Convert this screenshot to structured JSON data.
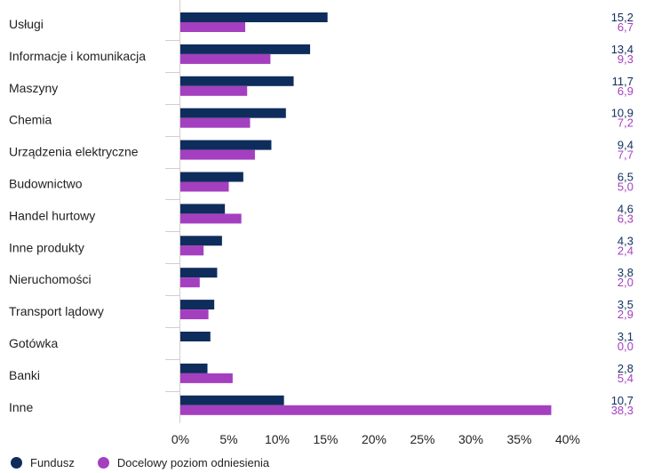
{
  "chart_data": {
    "type": "bar",
    "orientation": "horizontal",
    "categories": [
      "Usługi",
      "Informacje i komunikacja",
      "Maszyny",
      "Chemia",
      "Urządzenia elektryczne",
      "Budownictwo",
      "Handel hurtowy",
      "Inne produkty",
      "Nieruchomości",
      "Transport lądowy",
      "Gotówka",
      "Banki",
      "Inne"
    ],
    "series": [
      {
        "name": "Fundusz",
        "color": "#0f2d5c",
        "values": [
          15.2,
          13.4,
          11.7,
          10.9,
          9.4,
          6.5,
          4.6,
          4.3,
          3.8,
          3.5,
          3.1,
          2.8,
          10.7
        ],
        "labels": [
          "15,2",
          "13,4",
          "11,7",
          "10,9",
          "9,4",
          "6,5",
          "4,6",
          "4,3",
          "3,8",
          "3,5",
          "3,1",
          "2,8",
          "10,7"
        ]
      },
      {
        "name": "Docelowy poziom odniesienia",
        "color": "#a43fc0",
        "values": [
          6.7,
          9.3,
          6.9,
          7.2,
          7.7,
          5.0,
          6.3,
          2.4,
          2.0,
          2.9,
          0.0,
          5.4,
          38.3
        ],
        "labels": [
          "6,7",
          "9,3",
          "6,9",
          "7,2",
          "7,7",
          "5,0",
          "6,3",
          "2,4",
          "2,0",
          "2,9",
          "0,0",
          "5,4",
          "38,3"
        ]
      }
    ],
    "x_ticks": [
      0,
      5,
      10,
      15,
      20,
      25,
      30,
      35,
      40
    ],
    "x_tick_labels": [
      "0%",
      "5%",
      "10%",
      "15%",
      "20%",
      "25%",
      "30%",
      "35%",
      "40%"
    ],
    "xlim": [
      0,
      40
    ],
    "grid": false,
    "legend_position": "bottom-left"
  }
}
